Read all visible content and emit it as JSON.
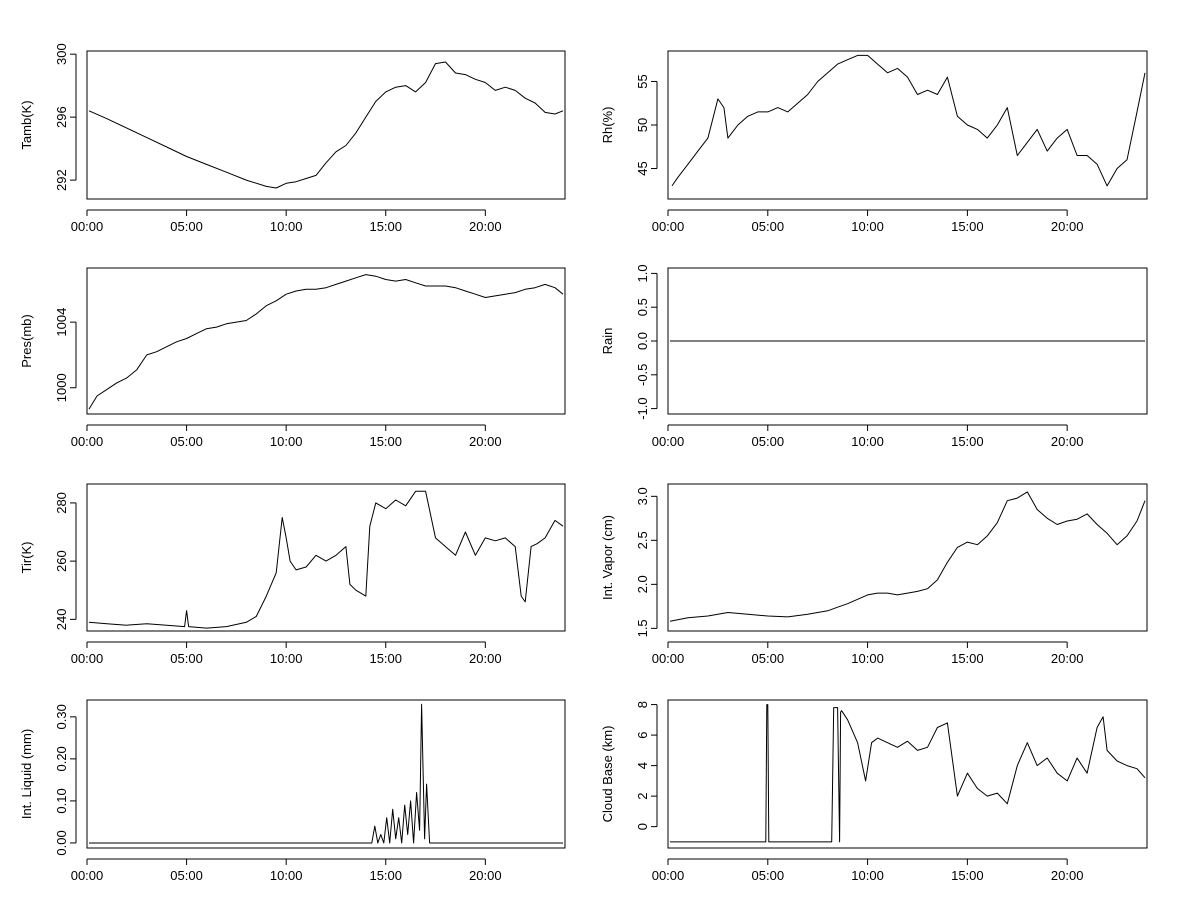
{
  "colors": {
    "line": "#000000",
    "frame": "#000000",
    "background": "#ffffff"
  },
  "chart_data": [
    {
      "type": "line",
      "title": "",
      "xlabel": "",
      "ylabel": "Tamb(K)",
      "xlim": [
        0,
        24
      ],
      "ylim": [
        290.8,
        300.2
      ],
      "x_ticks": [
        "00:00",
        "05:00",
        "10:00",
        "15:00",
        "20:00"
      ],
      "y_ticks": [
        292,
        296,
        300
      ],
      "series": [
        {
          "x": [
            0.1,
            1,
            2,
            3,
            4,
            5,
            6,
            7,
            8,
            9,
            9.5,
            10,
            10.5,
            11,
            11.5,
            12,
            12.5,
            13,
            13.5,
            14,
            14.5,
            15,
            15.5,
            16,
            16.5,
            17,
            17.5,
            18,
            18.5,
            19,
            19.5,
            20,
            20.5,
            21,
            21.5,
            22,
            22.5,
            23,
            23.5,
            23.9
          ],
          "y": [
            296.4,
            295.9,
            295.3,
            294.7,
            294.1,
            293.5,
            293.0,
            292.5,
            292.0,
            291.6,
            291.5,
            291.8,
            291.9,
            292.1,
            292.3,
            293.1,
            293.8,
            294.2,
            295.0,
            296.0,
            297.0,
            297.6,
            297.9,
            298.0,
            297.6,
            298.2,
            299.4,
            299.5,
            298.8,
            298.7,
            298.4,
            298.2,
            297.7,
            297.9,
            297.7,
            297.2,
            296.9,
            296.3,
            296.2,
            296.4
          ]
        }
      ]
    },
    {
      "type": "line",
      "title": "",
      "xlabel": "",
      "ylabel": "Rh(%)",
      "xlim": [
        0,
        24
      ],
      "ylim": [
        41.5,
        58.5
      ],
      "x_ticks": [
        "00:00",
        "05:00",
        "10:00",
        "15:00",
        "20:00"
      ],
      "y_ticks": [
        45,
        50,
        55
      ],
      "series": [
        {
          "x": [
            0.2,
            0.5,
            1,
            1.5,
            2,
            2.5,
            2.8,
            3,
            3.5,
            4,
            4.5,
            5,
            5.5,
            6,
            6.5,
            7,
            7.5,
            8,
            8.5,
            9,
            9.5,
            10,
            10.5,
            11,
            11.5,
            12,
            12.5,
            13,
            13.5,
            14,
            14.5,
            15,
            15.5,
            16,
            16.5,
            17,
            17.5,
            18,
            18.5,
            19,
            19.5,
            20,
            20.5,
            21,
            21.5,
            22,
            22.5,
            23,
            23.5,
            23.9
          ],
          "y": [
            43.0,
            44.0,
            45.5,
            47.0,
            48.5,
            53.0,
            52.0,
            48.5,
            50.0,
            51.0,
            51.5,
            51.5,
            52.0,
            51.5,
            52.5,
            53.5,
            55.0,
            56.0,
            57.0,
            57.5,
            58.0,
            58.0,
            57.0,
            56.0,
            56.5,
            55.5,
            53.5,
            54.0,
            53.5,
            55.5,
            51.0,
            50.0,
            49.5,
            48.5,
            50.0,
            52.0,
            46.5,
            48.0,
            49.5,
            47.0,
            48.5,
            49.5,
            46.5,
            46.5,
            45.5,
            43.0,
            45.0,
            46.0,
            51.5,
            56.0
          ]
        }
      ]
    },
    {
      "type": "line",
      "title": "",
      "xlabel": "",
      "ylabel": "Pres(mb)",
      "xlim": [
        0,
        24
      ],
      "ylim": [
        998.4,
        1007.3
      ],
      "x_ticks": [
        "00:00",
        "05:00",
        "10:00",
        "15:00",
        "20:00"
      ],
      "y_ticks": [
        1000,
        1004
      ],
      "series": [
        {
          "x": [
            0.1,
            0.5,
            1,
            1.5,
            2,
            2.5,
            3,
            3.5,
            4,
            4.5,
            5,
            5.5,
            6,
            6.5,
            7,
            7.5,
            8,
            8.5,
            9,
            9.5,
            10,
            10.5,
            11,
            11.5,
            12,
            12.5,
            13,
            13.5,
            14,
            14.5,
            15,
            15.5,
            16,
            16.5,
            17,
            17.5,
            18,
            18.5,
            19,
            19.5,
            20,
            20.5,
            21,
            21.5,
            22,
            22.5,
            23,
            23.5,
            23.9
          ],
          "y": [
            998.7,
            999.5,
            999.9,
            1000.3,
            1000.6,
            1001.1,
            1002.0,
            1002.2,
            1002.5,
            1002.8,
            1003.0,
            1003.3,
            1003.6,
            1003.7,
            1003.9,
            1004.0,
            1004.1,
            1004.5,
            1005.0,
            1005.3,
            1005.7,
            1005.9,
            1006.0,
            1006.0,
            1006.1,
            1006.3,
            1006.5,
            1006.7,
            1006.9,
            1006.8,
            1006.6,
            1006.5,
            1006.6,
            1006.4,
            1006.2,
            1006.2,
            1006.2,
            1006.1,
            1005.9,
            1005.7,
            1005.5,
            1005.6,
            1005.7,
            1005.8,
            1006.0,
            1006.1,
            1006.3,
            1006.1,
            1005.7
          ]
        }
      ]
    },
    {
      "type": "line",
      "title": "",
      "xlabel": "",
      "ylabel": "Rain",
      "xlim": [
        0,
        24
      ],
      "ylim": [
        -1.08,
        1.08
      ],
      "x_ticks": [
        "00:00",
        "05:00",
        "10:00",
        "15:00",
        "20:00"
      ],
      "y_ticks": [
        "-1.0",
        "-0.5",
        "0.0",
        "0.5",
        "1.0"
      ],
      "series": [
        {
          "x": [
            0.1,
            23.9
          ],
          "y": [
            0,
            0
          ]
        }
      ]
    },
    {
      "type": "line",
      "title": "",
      "xlabel": "",
      "ylabel": "Tir(K)",
      "xlim": [
        0,
        24
      ],
      "ylim": [
        236,
        286.5
      ],
      "x_ticks": [
        "00:00",
        "05:00",
        "10:00",
        "15:00",
        "20:00"
      ],
      "y_ticks": [
        240,
        260,
        280
      ],
      "series": [
        {
          "x": [
            0.1,
            1,
            2,
            3,
            4,
            4.9,
            5.0,
            5.1,
            6,
            7,
            8,
            8.5,
            9,
            9.5,
            9.8,
            10,
            10.2,
            10.5,
            11,
            11.5,
            12,
            12.5,
            13,
            13.2,
            13.5,
            14,
            14.2,
            14.5,
            15,
            15.5,
            16,
            16.5,
            17,
            17.5,
            18,
            18.5,
            19,
            19.5,
            20,
            20.5,
            21,
            21.5,
            21.8,
            22,
            22.3,
            22.6,
            23,
            23.5,
            23.9
          ],
          "y": [
            239,
            238.5,
            238,
            238.5,
            238,
            237.5,
            243,
            237.5,
            237,
            237.5,
            239,
            241,
            248,
            256,
            275,
            268,
            260,
            257,
            258,
            262,
            260,
            262,
            265,
            252,
            250,
            248,
            272,
            280,
            278,
            281,
            279,
            284,
            284,
            268,
            265,
            262,
            270,
            262,
            268,
            267,
            268,
            265,
            248,
            246,
            265,
            266,
            268,
            274,
            272
          ]
        }
      ]
    },
    {
      "type": "line",
      "title": "",
      "xlabel": "",
      "ylabel": "Int. Vapor (cm)",
      "xlim": [
        0,
        24
      ],
      "ylim": [
        1.47,
        3.14
      ],
      "x_ticks": [
        "00:00",
        "05:00",
        "10:00",
        "15:00",
        "20:00"
      ],
      "y_ticks": [
        "1.5",
        "2.0",
        "2.5",
        "3.0"
      ],
      "series": [
        {
          "x": [
            0.1,
            1,
            2,
            3,
            4,
            5,
            6,
            7,
            8,
            8.5,
            9,
            9.5,
            10,
            10.5,
            11,
            11.5,
            12,
            12.5,
            13,
            13.5,
            14,
            14.5,
            15,
            15.5,
            16,
            16.5,
            17,
            17.5,
            18,
            18.5,
            19,
            19.5,
            20,
            20.5,
            21,
            21.5,
            22,
            22.5,
            23,
            23.5,
            23.9
          ],
          "y": [
            1.58,
            1.62,
            1.64,
            1.68,
            1.66,
            1.64,
            1.63,
            1.66,
            1.7,
            1.74,
            1.78,
            1.83,
            1.88,
            1.9,
            1.9,
            1.88,
            1.9,
            1.92,
            1.95,
            2.05,
            2.25,
            2.42,
            2.48,
            2.45,
            2.55,
            2.7,
            2.95,
            2.98,
            3.05,
            2.85,
            2.75,
            2.68,
            2.72,
            2.74,
            2.8,
            2.68,
            2.58,
            2.45,
            2.55,
            2.72,
            2.95
          ]
        }
      ]
    },
    {
      "type": "line",
      "title": "",
      "xlabel": "",
      "ylabel": "Int. Liquid (mm)",
      "xlim": [
        0,
        24
      ],
      "ylim": [
        -0.012,
        0.34
      ],
      "x_ticks": [
        "00:00",
        "05:00",
        "10:00",
        "15:00",
        "20:00"
      ],
      "y_ticks": [
        "0.00",
        "0.10",
        "0.20",
        "0.30"
      ],
      "series": [
        {
          "x": [
            0.1,
            14.3,
            14.45,
            14.6,
            14.75,
            14.9,
            15.05,
            15.2,
            15.35,
            15.5,
            15.65,
            15.8,
            15.95,
            16.1,
            16.25,
            16.4,
            16.55,
            16.7,
            16.8,
            16.95,
            17.05,
            17.2,
            23.9
          ],
          "y": [
            0,
            0,
            0.04,
            0,
            0.02,
            0,
            0.06,
            0,
            0.08,
            0.01,
            0.06,
            0,
            0.09,
            0.02,
            0.1,
            0,
            0.12,
            0.03,
            0.33,
            0.01,
            0.14,
            0,
            0
          ]
        }
      ]
    },
    {
      "type": "line",
      "title": "",
      "xlabel": "",
      "ylabel": "Cloud Base (km)",
      "xlim": [
        0,
        24
      ],
      "ylim": [
        -1.4,
        8.3
      ],
      "x_ticks": [
        "00:00",
        "05:00",
        "10:00",
        "15:00",
        "20:00"
      ],
      "y_ticks": [
        0,
        2,
        4,
        6,
        8
      ],
      "series": [
        {
          "x": [
            0.1,
            4.9,
            4.95,
            5.0,
            5.05,
            8.2,
            8.3,
            8.5,
            8.6,
            8.65,
            8.7,
            9,
            9.5,
            9.9,
            10.2,
            10.5,
            11,
            11.5,
            12,
            12.5,
            13,
            13.5,
            14,
            14.5,
            15,
            15.5,
            16,
            16.5,
            17,
            17.5,
            18,
            18.5,
            19,
            19.5,
            20,
            20.5,
            21,
            21.5,
            21.8,
            22,
            22.5,
            23,
            23.5,
            23.9
          ],
          "y": [
            -1,
            -1,
            8,
            8,
            -1,
            -1,
            7.8,
            7.8,
            -1,
            7.5,
            7.6,
            7.0,
            5.5,
            3.0,
            5.5,
            5.8,
            5.5,
            5.2,
            5.6,
            5.0,
            5.2,
            6.5,
            6.8,
            2.0,
            3.5,
            2.5,
            2.0,
            2.2,
            1.5,
            4.0,
            5.5,
            4.0,
            4.5,
            3.5,
            3.0,
            4.5,
            3.5,
            6.5,
            7.2,
            5.0,
            4.3,
            4.0,
            3.8,
            3.2
          ]
        }
      ]
    }
  ]
}
